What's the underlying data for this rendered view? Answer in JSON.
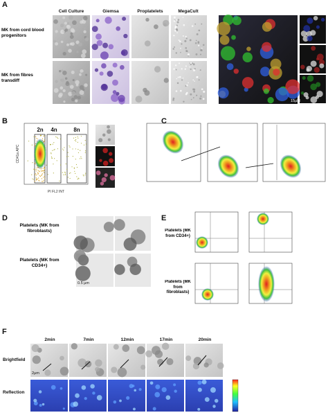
{
  "panel_a": {
    "letter": "A",
    "columns": [
      "Cell Culture",
      "Giemsa",
      "Proplatelets",
      "MegaCult"
    ],
    "rows": [
      "MK from cord blood progenitors",
      "MK from fibres transdiff"
    ],
    "scale_label": "15µM"
  },
  "panel_b": {
    "letter": "B",
    "gates": [
      "2n",
      "4n",
      "8n"
    ],
    "y_label": "CD41a APC",
    "x_label": "PI FL2 INT"
  },
  "panel_c": {
    "letter": "C"
  },
  "panel_d": {
    "letter": "D",
    "rows": [
      "Platelets (MK from fibroblasts)",
      "Platelets (MK from CD34+)"
    ],
    "scale_label": "0.5 µm"
  },
  "panel_e": {
    "letter": "E",
    "rows": [
      "Platelets (MK from CD34+)",
      "Platelets (MK from fibroblasts)"
    ]
  },
  "panel_f": {
    "letter": "F",
    "times": [
      "2min",
      "7min",
      "12min",
      "17min",
      "20min"
    ],
    "rows": [
      "Brightfield",
      "Reflection"
    ],
    "scale_label": "2µm"
  }
}
